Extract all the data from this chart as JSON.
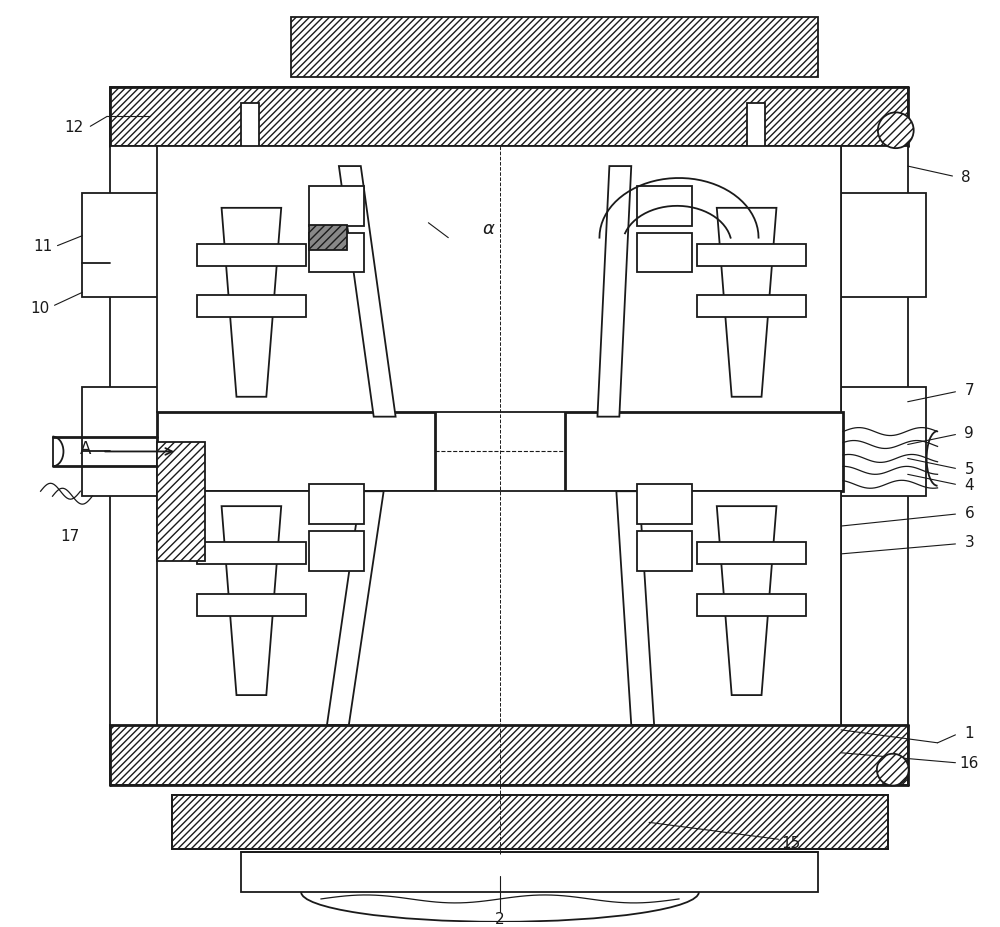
{
  "bg_color": "#ffffff",
  "line_color": "#1a1a1a",
  "lw": 1.3,
  "lw_thick": 2.0,
  "figsize": [
    10.0,
    9.28
  ]
}
